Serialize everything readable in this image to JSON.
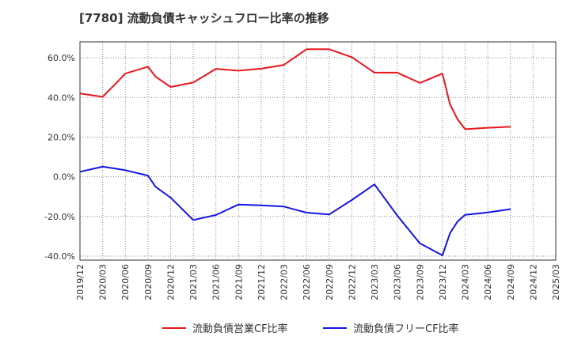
{
  "chart_data": {
    "type": "line",
    "title": "[7780]  流動負債キャッシュフロー比率の推移",
    "xlabel": "",
    "ylabel": "",
    "ylim": [
      -42,
      68
    ],
    "yticks": [
      60,
      40,
      20,
      0,
      -20,
      -40
    ],
    "ytick_labels": [
      "60.0%",
      "40.0%",
      "20.0%",
      "0.0%",
      "-20.0%",
      "-40.0%"
    ],
    "xlim": [
      "2019-12",
      "2025-03"
    ],
    "xtick_labels": [
      "2019/12",
      "2020/03",
      "2020/06",
      "2020/09",
      "2020/12",
      "2021/03",
      "2021/06",
      "2021/09",
      "2021/12",
      "2022/03",
      "2022/06",
      "2022/09",
      "2022/12",
      "2023/03",
      "2023/06",
      "2023/09",
      "2023/12",
      "2024/03",
      "2024/06",
      "2024/09",
      "2024/12",
      "2025/03"
    ],
    "grid": true,
    "legend_position": "bottom",
    "series": [
      {
        "name": "流動負債営業CF比率",
        "color": "#e8171c",
        "x": [
          "2019-12",
          "2020-03",
          "2020-05",
          "2020-06",
          "2020-09",
          "2020-10",
          "2020-12",
          "2021-03",
          "2021-06",
          "2021-09",
          "2021-12",
          "2022-03",
          "2022-06",
          "2022-09",
          "2022-12",
          "2023-03",
          "2023-06",
          "2023-09",
          "2023-12",
          "2024-01",
          "2024-02",
          "2024-03",
          "2024-06",
          "2024-09"
        ],
        "values": [
          42,
          40.3,
          48,
          52,
          55.5,
          50.5,
          45.3,
          47.5,
          54.4,
          53.5,
          54.5,
          56.4,
          64.3,
          64.3,
          60.3,
          52.5,
          52.5,
          47.3,
          52,
          36.5,
          29,
          24,
          24.7,
          25.2
        ]
      },
      {
        "name": "流動負債フリーCF比率",
        "color": "#1515e6",
        "x": [
          "2019-12",
          "2020-03",
          "2020-06",
          "2020-09",
          "2020-10",
          "2020-12",
          "2021-03",
          "2021-06",
          "2021-09",
          "2021-12",
          "2022-03",
          "2022-06",
          "2022-09",
          "2022-12",
          "2023-03",
          "2023-06",
          "2023-09",
          "2023-12",
          "2024-01",
          "2024-02",
          "2024-03",
          "2024-06",
          "2024-09"
        ],
        "values": [
          2.5,
          5.1,
          3.3,
          0.6,
          -5,
          -10.5,
          -21.8,
          -19.3,
          -14,
          -14.4,
          -15,
          -18.1,
          -19,
          -11.7,
          -3.8,
          -19.5,
          -33.5,
          -39.6,
          -28.5,
          -22.5,
          -19.2,
          -18,
          -16.3
        ]
      }
    ]
  }
}
